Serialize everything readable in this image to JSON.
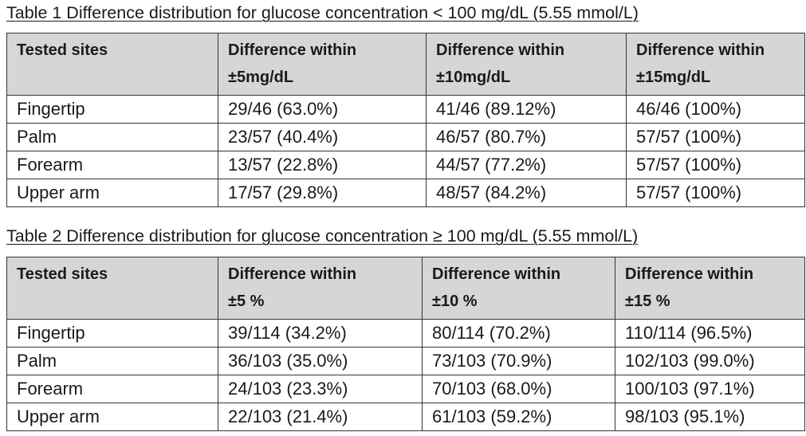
{
  "tables": [
    {
      "title": "Table 1  Difference distribution for glucose concentration < 100 mg/dL (5.55 mmol/L)",
      "header": [
        [
          "Tested sites"
        ],
        [
          "Difference within",
          "±5mg/dL"
        ],
        [
          "Difference within",
          "±10mg/dL"
        ],
        [
          "Difference within",
          "±15mg/dL"
        ]
      ],
      "rows": [
        [
          "Fingertip",
          "29/46 (63.0%)",
          "41/46 (89.12%)",
          "46/46 (100%)"
        ],
        [
          "Palm",
          "23/57 (40.4%)",
          "46/57 (80.7%)",
          "57/57 (100%)"
        ],
        [
          "Forearm",
          "13/57 (22.8%)",
          "44/57 (77.2%)",
          "57/57 (100%)"
        ],
        [
          "Upper arm",
          "17/57 (29.8%)",
          "48/57 (84.2%)",
          "57/57 (100%)"
        ]
      ]
    },
    {
      "title": "Table 2  Difference distribution for glucose concentration ≥ 100 mg/dL (5.55 mmol/L)",
      "header": [
        [
          "Tested sites"
        ],
        [
          "Difference within",
          "±5 %"
        ],
        [
          "Difference within",
          "±10 %"
        ],
        [
          "Difference within",
          "±15 %"
        ]
      ],
      "rows": [
        [
          "Fingertip",
          "39/114 (34.2%)",
          "80/114 (70.2%)",
          "110/114 (96.5%)"
        ],
        [
          "Palm",
          "36/103 (35.0%)",
          "73/103 (70.9%)",
          "102/103 (99.0%)"
        ],
        [
          "Forearm",
          "24/103 (23.3%)",
          "70/103 (68.0%)",
          "100/103 (97.1%)"
        ],
        [
          "Upper arm",
          "22/103 (21.4%)",
          "61/103 (59.2%)",
          "98/103 (95.1%)"
        ]
      ]
    }
  ]
}
